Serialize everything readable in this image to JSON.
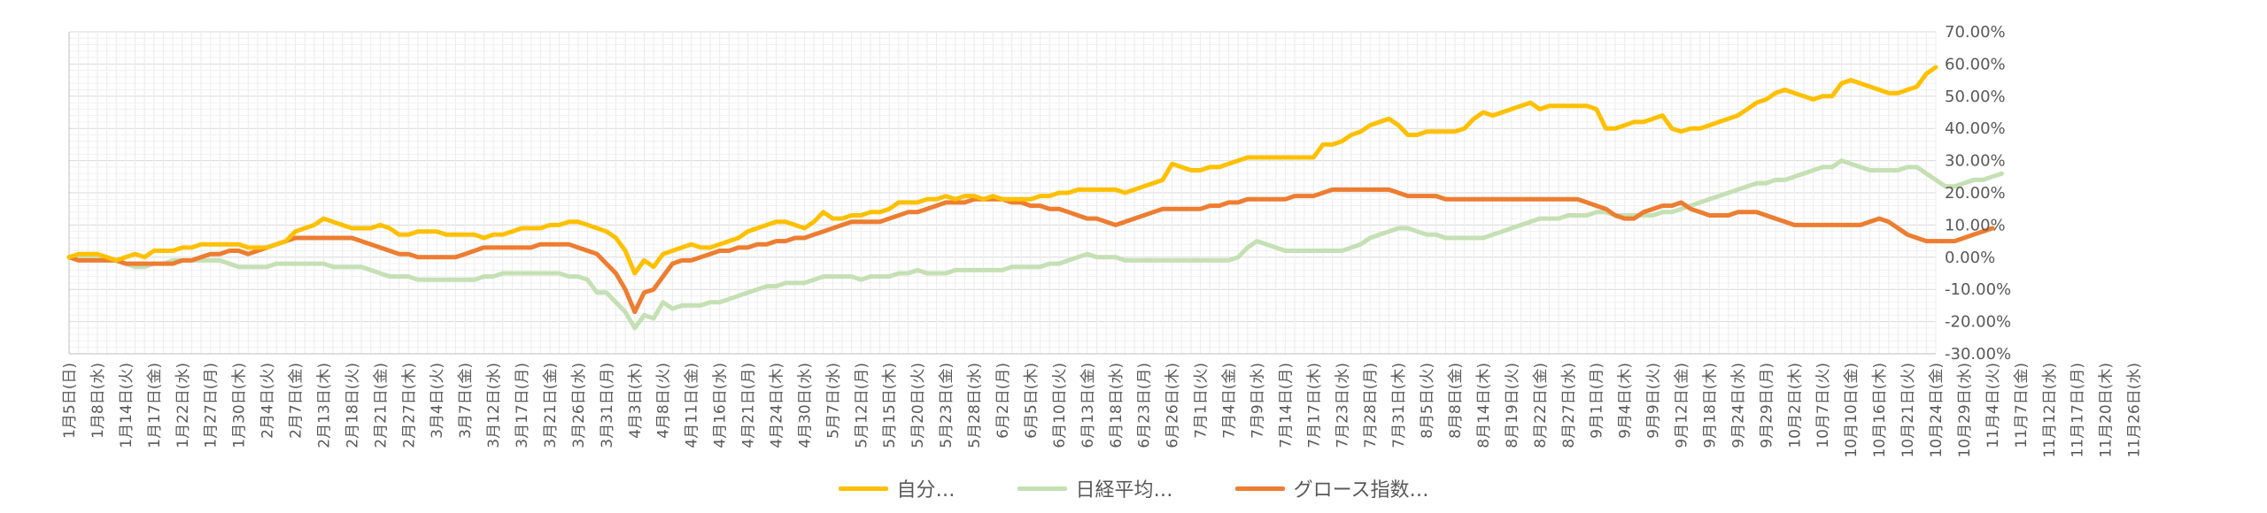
{
  "chart_data": {
    "type": "line",
    "title": "",
    "xlabel": "",
    "ylabel": "",
    "ylim": [
      -30,
      70
    ],
    "y_ticks": [
      "-30.00%",
      "-20.00%",
      "-10.00%",
      "0.00%",
      "10.00%",
      "20.00%",
      "30.00%",
      "40.00%",
      "50.00%",
      "60.00%",
      "70.00%"
    ],
    "grid": true,
    "legend_position": "bottom",
    "x_labels": [
      "1月5日(日)",
      "1月8日(水)",
      "1月14日(火)",
      "1月17日(金)",
      "1月22日(水)",
      "1月27日(月)",
      "1月30日(木)",
      "2月4日(火)",
      "2月7日(金)",
      "2月13日(木)",
      "2月18日(火)",
      "2月21日(金)",
      "2月27日(木)",
      "3月4日(火)",
      "3月7日(金)",
      "3月12日(水)",
      "3月17日(月)",
      "3月21日(金)",
      "3月26日(水)",
      "3月31日(月)",
      "4月3日(木)",
      "4月8日(火)",
      "4月11日(金)",
      "4月16日(水)",
      "4月21日(月)",
      "4月24日(木)",
      "4月30日(水)",
      "5月7日(水)",
      "5月12日(月)",
      "5月15日(木)",
      "5月20日(火)",
      "5月23日(金)",
      "5月28日(水)",
      "6月2日(月)",
      "6月5日(木)",
      "6月10日(火)",
      "6月13日(金)",
      "6月18日(水)",
      "6月23日(月)",
      "6月26日(木)",
      "7月1日(火)",
      "7月4日(金)",
      "7月9日(水)",
      "7月14日(月)",
      "7月17日(木)",
      "7月23日(水)",
      "7月28日(月)",
      "7月31日(木)",
      "8月5日(火)",
      "8月8日(金)",
      "8月14日(木)",
      "8月19日(火)",
      "8月22日(金)",
      "8月27日(水)",
      "9月1日(月)",
      "9月4日(木)",
      "9月9日(火)",
      "9月12日(金)",
      "9月18日(木)",
      "9月24日(水)",
      "9月29日(月)",
      "10月2日(木)",
      "10月7日(火)",
      "10月10日(金)",
      "10月16日(木)",
      "10月21日(火)",
      "10月24日(金)",
      "10月29日(水)",
      "11月4日(火)",
      "11月7日(金)",
      "11月12日(水)",
      "11月17日(月)",
      "11月20日(木)",
      "11月26日(水)"
    ],
    "points_per_label": 3,
    "series": [
      {
        "name": "自分…",
        "color": "#FFC000",
        "values": [
          0,
          1,
          1,
          1,
          0,
          -1,
          0,
          1,
          0,
          2,
          2,
          2,
          3,
          3,
          4,
          4,
          4,
          4,
          4,
          3,
          3,
          3,
          4,
          5,
          8,
          9,
          10,
          12,
          11,
          10,
          9,
          9,
          9,
          10,
          9,
          7,
          7,
          8,
          8,
          8,
          7,
          7,
          7,
          7,
          6,
          7,
          7,
          8,
          9,
          9,
          9,
          10,
          10,
          11,
          11,
          10,
          9,
          8,
          6,
          2,
          -5,
          -1,
          -3,
          1,
          2,
          3,
          4,
          3,
          3,
          4,
          5,
          6,
          8,
          9,
          10,
          11,
          11,
          10,
          9,
          11,
          14,
          12,
          12,
          13,
          13,
          14,
          14,
          15,
          17,
          17,
          17,
          18,
          18,
          19,
          18,
          19,
          19,
          18,
          19,
          18,
          18,
          18,
          18,
          19,
          19,
          20,
          20,
          21,
          21,
          21,
          21,
          21,
          20,
          21,
          22,
          23,
          24,
          29,
          28,
          27,
          27,
          28,
          28,
          29,
          30,
          31,
          31,
          31,
          31,
          31,
          31,
          31,
          31,
          35,
          35,
          36,
          38,
          39,
          41,
          42,
          43,
          41,
          38,
          38,
          39,
          39,
          39,
          39,
          40,
          43,
          45,
          44,
          45,
          46,
          47,
          48,
          46,
          47,
          47,
          47,
          47,
          47,
          46,
          40,
          40,
          41,
          42,
          42,
          43,
          44,
          40,
          39,
          40,
          40,
          41,
          42,
          43,
          44,
          46,
          48,
          49,
          51,
          52,
          51,
          50,
          49,
          50,
          50,
          54,
          55,
          54,
          53,
          52,
          51,
          51,
          52,
          53,
          57,
          59
        ]
      },
      {
        "name": "日経平均…",
        "color": "#C5E0B4",
        "values": [
          0,
          0,
          0,
          0,
          0,
          -1,
          -2,
          -3,
          -3,
          -2,
          -2,
          -1,
          -1,
          -1,
          -1,
          -1,
          -1,
          -2,
          -3,
          -3,
          -3,
          -3,
          -2,
          -2,
          -2,
          -2,
          -2,
          -2,
          -3,
          -3,
          -3,
          -3,
          -4,
          -5,
          -6,
          -6,
          -6,
          -7,
          -7,
          -7,
          -7,
          -7,
          -7,
          -7,
          -6,
          -6,
          -5,
          -5,
          -5,
          -5,
          -5,
          -5,
          -5,
          -6,
          -6,
          -7,
          -11,
          -11,
          -14,
          -17,
          -22,
          -18,
          -19,
          -14,
          -16,
          -15,
          -15,
          -15,
          -14,
          -14,
          -13,
          -12,
          -11,
          -10,
          -9,
          -9,
          -8,
          -8,
          -8,
          -7,
          -6,
          -6,
          -6,
          -6,
          -7,
          -6,
          -6,
          -6,
          -5,
          -5,
          -4,
          -5,
          -5,
          -5,
          -4,
          -4,
          -4,
          -4,
          -4,
          -4,
          -3,
          -3,
          -3,
          -3,
          -2,
          -2,
          -1,
          0,
          1,
          0,
          0,
          0,
          -1,
          -1,
          -1,
          -1,
          -1,
          -1,
          -1,
          -1,
          -1,
          -1,
          -1,
          -1,
          0,
          3,
          5,
          4,
          3,
          2,
          2,
          2,
          2,
          2,
          2,
          2,
          3,
          4,
          6,
          7,
          8,
          9,
          9,
          8,
          7,
          7,
          6,
          6,
          6,
          6,
          6,
          7,
          8,
          9,
          10,
          11,
          12,
          12,
          12,
          13,
          13,
          13,
          14,
          14,
          13,
          13,
          13,
          13,
          13,
          14,
          14,
          15,
          16,
          17,
          18,
          19,
          20,
          21,
          22,
          23,
          23,
          24,
          24,
          25,
          26,
          27,
          28,
          28,
          30,
          29,
          28,
          27,
          27,
          27,
          27,
          28,
          28,
          26,
          24,
          22,
          22,
          23,
          24,
          24,
          25,
          26
        ]
      },
      {
        "name": "グロース指数…",
        "color": "#ED7D31",
        "values": [
          0,
          -1,
          -1,
          -1,
          -1,
          -1,
          -2,
          -2,
          -2,
          -2,
          -2,
          -2,
          -1,
          -1,
          0,
          1,
          1,
          2,
          2,
          1,
          2,
          3,
          4,
          5,
          6,
          6,
          6,
          6,
          6,
          6,
          6,
          5,
          4,
          3,
          2,
          1,
          1,
          0,
          0,
          0,
          0,
          0,
          1,
          2,
          3,
          3,
          3,
          3,
          3,
          3,
          4,
          4,
          4,
          4,
          3,
          2,
          1,
          -2,
          -5,
          -10,
          -17,
          -11,
          -10,
          -6,
          -2,
          -1,
          -1,
          0,
          1,
          2,
          2,
          3,
          3,
          4,
          4,
          5,
          5,
          6,
          6,
          7,
          8,
          9,
          10,
          11,
          11,
          11,
          11,
          12,
          13,
          14,
          14,
          15,
          16,
          17,
          17,
          17,
          18,
          18,
          18,
          18,
          17,
          17,
          16,
          16,
          15,
          15,
          14,
          13,
          12,
          12,
          11,
          10,
          11,
          12,
          13,
          14,
          15,
          15,
          15,
          15,
          15,
          16,
          16,
          17,
          17,
          18,
          18,
          18,
          18,
          18,
          19,
          19,
          19,
          20,
          21,
          21,
          21,
          21,
          21,
          21,
          21,
          20,
          19,
          19,
          19,
          19,
          18,
          18,
          18,
          18,
          18,
          18,
          18,
          18,
          18,
          18,
          18,
          18,
          18,
          18,
          18,
          17,
          16,
          15,
          13,
          12,
          12,
          14,
          15,
          16,
          16,
          17,
          15,
          14,
          13,
          13,
          13,
          14,
          14,
          14,
          13,
          12,
          11,
          10,
          10,
          10,
          10,
          10,
          10,
          10,
          10,
          11,
          12,
          11,
          9,
          7,
          6,
          5,
          5,
          5,
          5,
          6,
          7,
          8,
          9
        ]
      }
    ]
  }
}
